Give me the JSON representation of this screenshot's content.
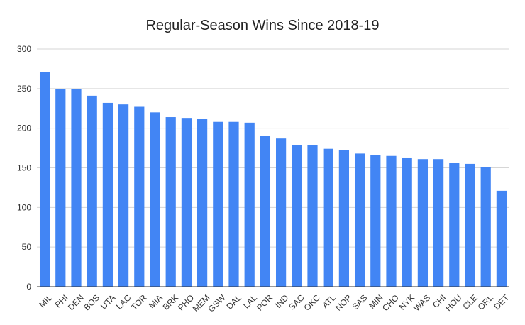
{
  "chart_data": {
    "type": "bar",
    "title": "Regular-Season Wins Since 2018-19",
    "xlabel": "",
    "ylabel": "",
    "ylim": [
      0,
      300
    ],
    "yticks": [
      0,
      50,
      100,
      150,
      200,
      250,
      300
    ],
    "grid": true,
    "legend": "none",
    "bar_color": "#4285f4",
    "categories": [
      "MIL",
      "PHI",
      "DEN",
      "BOS",
      "UTA",
      "LAC",
      "TOR",
      "MIA",
      "BRK",
      "PHO",
      "MEM",
      "GSW",
      "DAL",
      "LAL",
      "POR",
      "IND",
      "SAC",
      "OKC",
      "ATL",
      "NOP",
      "SAS",
      "MIN",
      "CHO",
      "NYK",
      "WAS",
      "CHI",
      "HOU",
      "CLE",
      "ORL",
      "DET"
    ],
    "values": [
      271,
      249,
      249,
      241,
      232,
      230,
      227,
      220,
      214,
      213,
      212,
      208,
      208,
      207,
      190,
      187,
      179,
      179,
      174,
      172,
      168,
      166,
      165,
      163,
      161,
      161,
      156,
      155,
      151,
      121
    ]
  }
}
